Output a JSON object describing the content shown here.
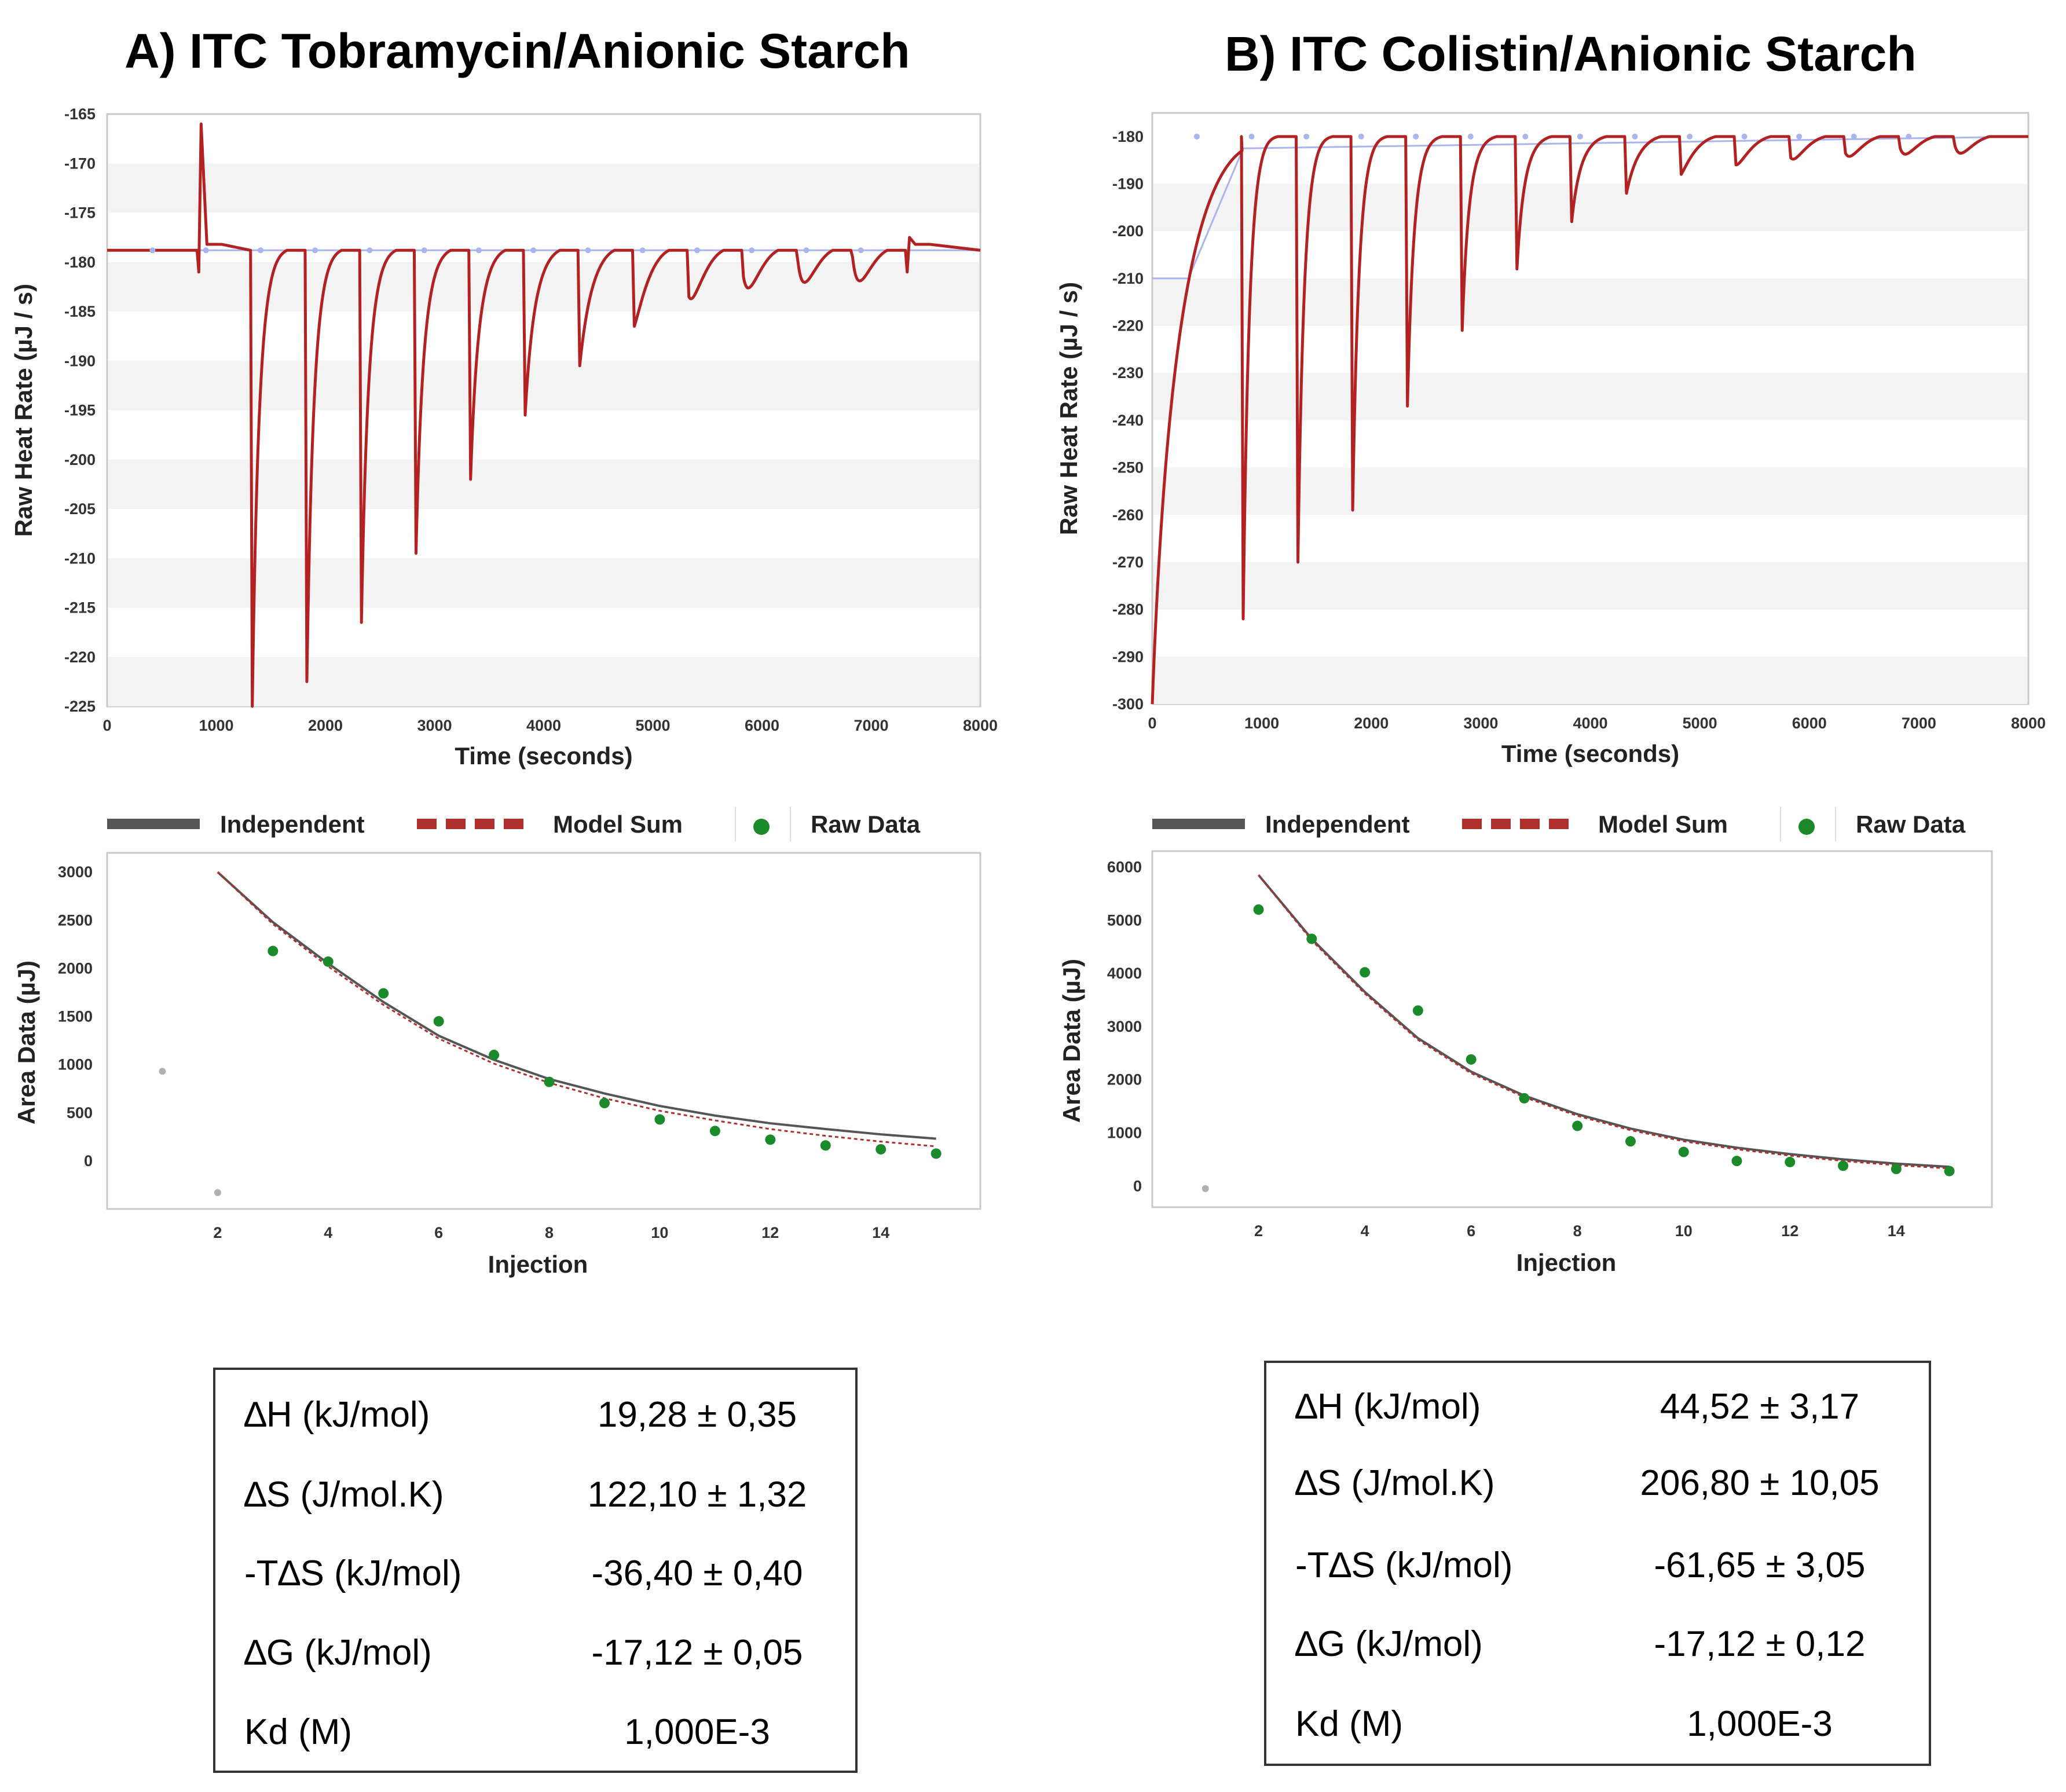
{
  "panels": [
    {
      "title": "A) ITC Tobramycin/Anionic Starch",
      "table": [
        {
          "label": "∆H (kJ/mol)",
          "value": "19,28 ± 0,35"
        },
        {
          "label": "∆S (J/mol.K)",
          "value": "122,10 ± 1,32"
        },
        {
          "label": "-T∆S (kJ/mol)",
          "value": "-36,40 ± 0,40"
        },
        {
          "label": "∆G (kJ/mol)",
          "value": "-17,12 ± 0,05"
        },
        {
          "label": "Kd (M)",
          "value": "1,000E-3"
        }
      ]
    },
    {
      "title": "B) ITC Colistin/Anionic Starch",
      "table": [
        {
          "label": "∆H (kJ/mol)",
          "value": "44,52 ± 3,17"
        },
        {
          "label": "∆S (J/mol.K)",
          "value": "206,80 ± 10,05"
        },
        {
          "label": "-T∆S (kJ/mol)",
          "value": "-61,65 ± 3,05"
        },
        {
          "label": "∆G (kJ/mol)",
          "value": "-17,12 ± 0,12"
        },
        {
          "label": "Kd (M)",
          "value": "1,000E-3"
        }
      ]
    }
  ],
  "legend": {
    "independent": "Independent",
    "model_sum": "Model Sum",
    "raw_data": "Raw Data"
  },
  "colors": {
    "raw_trace": "#b22222",
    "baseline": "#aab4ee",
    "independent": "#555555",
    "model_sum": "#b03030",
    "points": "#1a8a2a",
    "excluded_points": "#b0b0b0",
    "band": "#f3f3f3"
  },
  "chart_data": [
    {
      "type": "line",
      "title": "",
      "xlabel": "Time (seconds)",
      "ylabel": "Raw Heat Rate (µJ / s)",
      "xlim": [
        0,
        8000
      ],
      "ylim": [
        -225,
        -165
      ],
      "xticks": [
        "0",
        "1000",
        "2000",
        "3000",
        "4000",
        "5000",
        "6000",
        "7000",
        "8000"
      ],
      "yticks": [
        "-165",
        "-170",
        "-175",
        "-180",
        "-185",
        "-190",
        "-195",
        "-200",
        "-205",
        "-210",
        "-215",
        "-220",
        "-225"
      ],
      "baseline": -178.8,
      "spikes": [
        {
          "x": 840,
          "y": -166
        },
        {
          "x": 1330,
          "y": -225
        },
        {
          "x": 1830,
          "y": -222.5
        },
        {
          "x": 2330,
          "y": -216.5
        },
        {
          "x": 2830,
          "y": -209.5
        },
        {
          "x": 3330,
          "y": -202
        },
        {
          "x": 3830,
          "y": -195.5
        },
        {
          "x": 4330,
          "y": -190.5
        },
        {
          "x": 4830,
          "y": -186.5
        },
        {
          "x": 5330,
          "y": -183.5
        },
        {
          "x": 5830,
          "y": -181.5
        },
        {
          "x": 6330,
          "y": -180
        },
        {
          "x": 6830,
          "y": -179.5
        },
        {
          "x": 7330,
          "y": -177.5
        }
      ]
    },
    {
      "type": "scatter",
      "title": "",
      "xlabel": "Injection",
      "ylabel": "Area Data (µJ)",
      "xlim": [
        0,
        15.8
      ],
      "ylim": [
        -500,
        3200
      ],
      "xticks": [
        "2",
        "4",
        "6",
        "8",
        "10",
        "12",
        "14"
      ],
      "yticks": [
        "0",
        "500",
        "1000",
        "1500",
        "2000",
        "2500",
        "3000"
      ],
      "points": [
        {
          "x": 1,
          "y": 930,
          "excluded": true
        },
        {
          "x": 2,
          "y": -330,
          "excluded": true
        },
        {
          "x": 3,
          "y": 2180
        },
        {
          "x": 4,
          "y": 2070
        },
        {
          "x": 5,
          "y": 1740
        },
        {
          "x": 6,
          "y": 1450
        },
        {
          "x": 7,
          "y": 1100
        },
        {
          "x": 8,
          "y": 820
        },
        {
          "x": 9,
          "y": 600
        },
        {
          "x": 10,
          "y": 430
        },
        {
          "x": 11,
          "y": 310
        },
        {
          "x": 12,
          "y": 220
        },
        {
          "x": 13,
          "y": 160
        },
        {
          "x": 14,
          "y": 120
        },
        {
          "x": 15,
          "y": 75
        }
      ],
      "independent": [
        {
          "x": 2,
          "y": 3000
        },
        {
          "x": 3,
          "y": 2480
        },
        {
          "x": 4,
          "y": 2050
        },
        {
          "x": 5,
          "y": 1650
        },
        {
          "x": 6,
          "y": 1300
        },
        {
          "x": 7,
          "y": 1050
        },
        {
          "x": 8,
          "y": 850
        },
        {
          "x": 9,
          "y": 700
        },
        {
          "x": 10,
          "y": 570
        },
        {
          "x": 11,
          "y": 470
        },
        {
          "x": 12,
          "y": 390
        },
        {
          "x": 13,
          "y": 330
        },
        {
          "x": 14,
          "y": 275
        },
        {
          "x": 15,
          "y": 230
        }
      ],
      "model_sum": [
        {
          "x": 2,
          "y": 3000
        },
        {
          "x": 3,
          "y": 2460
        },
        {
          "x": 4,
          "y": 2020
        },
        {
          "x": 5,
          "y": 1620
        },
        {
          "x": 6,
          "y": 1270
        },
        {
          "x": 7,
          "y": 1010
        },
        {
          "x": 8,
          "y": 810
        },
        {
          "x": 9,
          "y": 650
        },
        {
          "x": 10,
          "y": 520
        },
        {
          "x": 11,
          "y": 420
        },
        {
          "x": 12,
          "y": 330
        },
        {
          "x": 13,
          "y": 260
        },
        {
          "x": 14,
          "y": 200
        },
        {
          "x": 15,
          "y": 150
        }
      ]
    },
    {
      "type": "line",
      "title": "",
      "xlabel": "Time (seconds)",
      "ylabel": "Raw Heat Rate (µJ / s)",
      "xlim": [
        0,
        8000
      ],
      "ylim": [
        -300,
        -175
      ],
      "xticks": [
        "0",
        "1000",
        "2000",
        "3000",
        "4000",
        "5000",
        "6000",
        "7000",
        "8000"
      ],
      "yticks": [
        "-180",
        "-190",
        "-200",
        "-210",
        "-220",
        "-230",
        "-240",
        "-250",
        "-260",
        "-270",
        "-280",
        "-290",
        "-300"
      ],
      "baseline": -180,
      "initial_drop": -300,
      "spikes": [
        {
          "x": 830,
          "y": -282
        },
        {
          "x": 1330,
          "y": -270
        },
        {
          "x": 1830,
          "y": -259
        },
        {
          "x": 2330,
          "y": -237
        },
        {
          "x": 2830,
          "y": -221
        },
        {
          "x": 3330,
          "y": -208
        },
        {
          "x": 3830,
          "y": -198
        },
        {
          "x": 4330,
          "y": -192
        },
        {
          "x": 4830,
          "y": -188
        },
        {
          "x": 5330,
          "y": -186
        },
        {
          "x": 5830,
          "y": -184.5
        },
        {
          "x": 6330,
          "y": -183.5
        },
        {
          "x": 6830,
          "y": -182.5
        },
        {
          "x": 7330,
          "y": -182
        }
      ]
    },
    {
      "type": "scatter",
      "title": "",
      "xlabel": "Injection",
      "ylabel": "Area Data (µJ)",
      "xlim": [
        0,
        15.8
      ],
      "ylim": [
        -400,
        6300
      ],
      "xticks": [
        "2",
        "4",
        "6",
        "8",
        "10",
        "12",
        "14"
      ],
      "yticks": [
        "0",
        "1000",
        "2000",
        "3000",
        "4000",
        "5000",
        "6000"
      ],
      "points": [
        {
          "x": 1,
          "y": -50,
          "excluded": true
        },
        {
          "x": 2,
          "y": 5200
        },
        {
          "x": 3,
          "y": 4650
        },
        {
          "x": 4,
          "y": 4020
        },
        {
          "x": 5,
          "y": 3300
        },
        {
          "x": 6,
          "y": 2380
        },
        {
          "x": 7,
          "y": 1650
        },
        {
          "x": 8,
          "y": 1130
        },
        {
          "x": 9,
          "y": 840
        },
        {
          "x": 10,
          "y": 640
        },
        {
          "x": 11,
          "y": 470
        },
        {
          "x": 12,
          "y": 450
        },
        {
          "x": 13,
          "y": 380
        },
        {
          "x": 14,
          "y": 320
        },
        {
          "x": 15,
          "y": 280
        }
      ],
      "independent": [
        {
          "x": 2,
          "y": 5850
        },
        {
          "x": 3,
          "y": 4650
        },
        {
          "x": 4,
          "y": 3650
        },
        {
          "x": 5,
          "y": 2780
        },
        {
          "x": 6,
          "y": 2150
        },
        {
          "x": 7,
          "y": 1700
        },
        {
          "x": 8,
          "y": 1350
        },
        {
          "x": 9,
          "y": 1080
        },
        {
          "x": 10,
          "y": 870
        },
        {
          "x": 11,
          "y": 720
        },
        {
          "x": 12,
          "y": 600
        },
        {
          "x": 13,
          "y": 500
        },
        {
          "x": 14,
          "y": 420
        },
        {
          "x": 15,
          "y": 360
        }
      ],
      "model_sum": [
        {
          "x": 2,
          "y": 5850
        },
        {
          "x": 3,
          "y": 4620
        },
        {
          "x": 4,
          "y": 3620
        },
        {
          "x": 5,
          "y": 2750
        },
        {
          "x": 6,
          "y": 2120
        },
        {
          "x": 7,
          "y": 1670
        },
        {
          "x": 8,
          "y": 1320
        },
        {
          "x": 9,
          "y": 1050
        },
        {
          "x": 10,
          "y": 840
        },
        {
          "x": 11,
          "y": 690
        },
        {
          "x": 12,
          "y": 570
        },
        {
          "x": 13,
          "y": 470
        },
        {
          "x": 14,
          "y": 390
        },
        {
          "x": 15,
          "y": 330
        }
      ]
    }
  ]
}
